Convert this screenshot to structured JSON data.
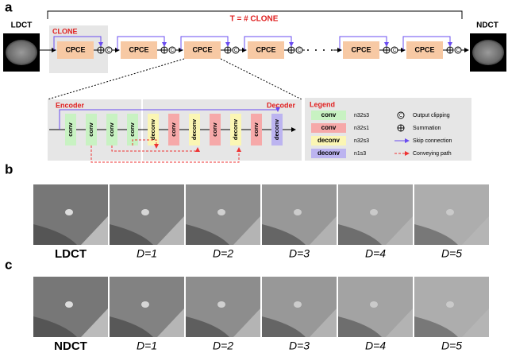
{
  "panel_a": {
    "label": "a",
    "input": "LDCT",
    "output": "NDCT",
    "iterations": "T = # CLONE",
    "clone": "CLONE",
    "modules": [
      "CPCE",
      "CPCE",
      "CPCE",
      "CPCE",
      "CPCE",
      "CPCE"
    ],
    "clip_symbol": "C",
    "encoder": "Encoder",
    "decoder": "Decoder",
    "layers": [
      {
        "label": "conv",
        "color": "#c8f2c2"
      },
      {
        "label": "conv",
        "color": "#c8f2c2"
      },
      {
        "label": "conv",
        "color": "#c8f2c2"
      },
      {
        "label": "conv",
        "color": "#c8f2c2"
      },
      {
        "label": "deconv",
        "color": "#fbf6b4"
      },
      {
        "label": "conv",
        "color": "#f6a9a9"
      },
      {
        "label": "deconv",
        "color": "#fbf6b4"
      },
      {
        "label": "conv",
        "color": "#f6a9a9"
      },
      {
        "label": "deconv",
        "color": "#fbf6b4"
      },
      {
        "label": "conv",
        "color": "#f6a9a9"
      },
      {
        "label": "deconv",
        "color": "#bcb4f0"
      }
    ],
    "legend": {
      "title": "Legend",
      "items": [
        {
          "label": "conv",
          "spec": "n32s3",
          "color": "#c8f2c2"
        },
        {
          "label": "conv",
          "spec": "n32s1",
          "color": "#f6a9a9"
        },
        {
          "label": "deconv",
          "spec": "n32s3",
          "color": "#fbf6b4"
        },
        {
          "label": "deconv",
          "spec": "n1s3",
          "color": "#bcb4f0"
        }
      ],
      "symbols": [
        "Output clipping",
        "Summation",
        "Skip connection",
        "Conveying path"
      ]
    }
  },
  "panel_b": {
    "label": "b",
    "captions": [
      "LDCT",
      "D=1",
      "D=2",
      "D=3",
      "D=4",
      "D=5"
    ]
  },
  "panel_c": {
    "label": "c",
    "captions": [
      "NDCT",
      "D=1",
      "D=2",
      "D=3",
      "D=4",
      "D=5"
    ]
  }
}
